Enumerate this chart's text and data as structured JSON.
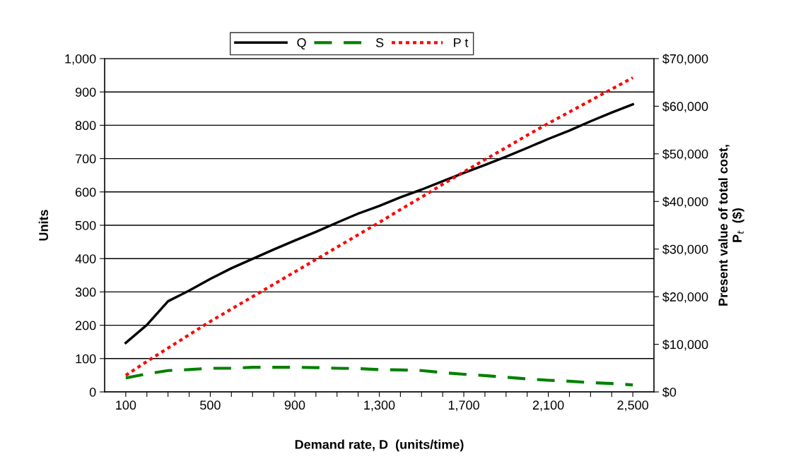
{
  "chart_data": {
    "type": "line",
    "xlabel": "Demand rate, D  (units/time)",
    "ylabel": "Units",
    "y2label": "Present value of total cost,\nP$_{t}$  ($)",
    "categories": [
      "100",
      null,
      null,
      null,
      "500",
      null,
      null,
      null,
      "900",
      null,
      null,
      null,
      "1,300",
      null,
      null,
      null,
      "1,700",
      null,
      null,
      null,
      "2,100",
      null,
      null,
      null,
      "2,500"
    ],
    "series": [
      {
        "name": "Q",
        "color": "#000000",
        "line_style": "solid",
        "values": [
          147,
          201,
          272,
          304,
          339,
          371,
          399,
          427,
          454,
          480,
          508,
          535,
          558,
          584,
          607,
          632,
          657,
          681,
          706,
          732,
          759,
          784,
          812,
          838,
          863
        ]
      },
      {
        "name": "S",
        "color": "#008000",
        "line_style": "dashed",
        "values": [
          42,
          54,
          64,
          67,
          71,
          71,
          74,
          74,
          74,
          73,
          71,
          70,
          67,
          66,
          64,
          58,
          53,
          49,
          44,
          39,
          35,
          32,
          28,
          25,
          21
        ]
      },
      {
        "name": "P t",
        "color": "#ff0000",
        "line_style": "dotted",
        "axis": "y2",
        "values": [
          3500,
          6400,
          9200,
          12000,
          14800,
          17400,
          20000,
          22600,
          25200,
          27800,
          30400,
          33000,
          35600,
          38300,
          40900,
          43600,
          46200,
          48800,
          51300,
          53900,
          56400,
          58800,
          61200,
          63600,
          66000
        ]
      }
    ],
    "ylim": [
      0,
      1000
    ],
    "yticks": [
      0,
      100,
      200,
      300,
      400,
      500,
      600,
      700,
      800,
      900,
      {
        "value": 1000,
        "label": "1,000"
      }
    ],
    "y2lim": [
      0,
      70000
    ],
    "y2ticks": [
      {
        "value": 0,
        "label": "$0"
      },
      {
        "value": 10000,
        "label": "$10,000"
      },
      {
        "value": 20000,
        "label": "$20,000"
      },
      {
        "value": 30000,
        "label": "$30,000"
      },
      {
        "value": 40000,
        "label": "$40,000"
      },
      {
        "value": 50000,
        "label": "$50,000"
      },
      {
        "value": 60000,
        "label": "$60,000"
      },
      {
        "value": 70000,
        "label": "$70,000"
      }
    ],
    "grid": "y",
    "legend": "top",
    "marker": "none"
  }
}
